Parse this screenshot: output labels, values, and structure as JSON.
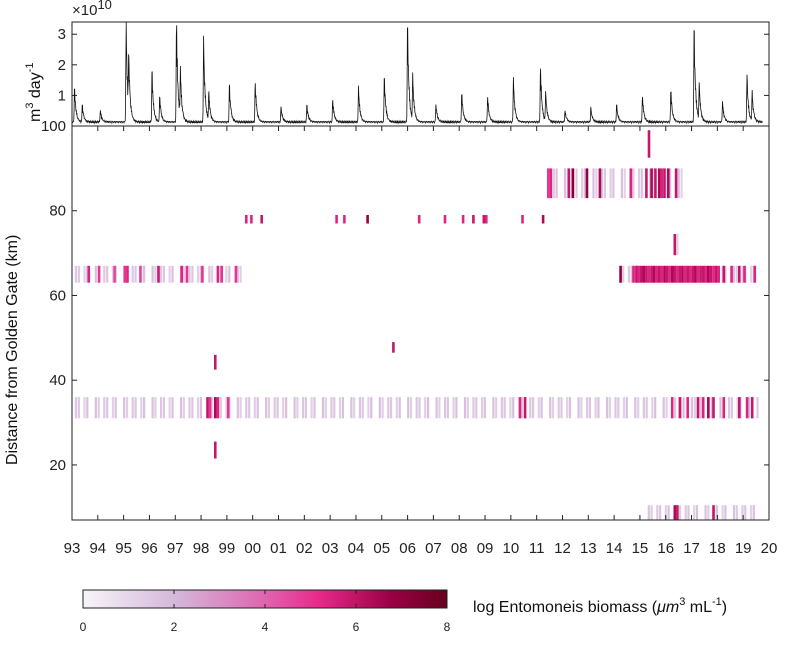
{
  "chart_data": [
    {
      "type": "line",
      "panel": "top",
      "ylabel_base": "m",
      "ylabel_sup1": "3",
      "ylabel_mid": " day",
      "ylabel_sup2": "-1",
      "multiplier_prefix": "×10",
      "multiplier_exp": "10",
      "ylim": [
        0,
        3.4
      ],
      "yticks": [
        1,
        2,
        3
      ],
      "xlim": [
        1993,
        2020
      ],
      "peaks": [
        {
          "x": 1993.1,
          "y": 1.2
        },
        {
          "x": 1993.4,
          "y": 0.6
        },
        {
          "x": 1994.1,
          "y": 0.4
        },
        {
          "x": 1995.1,
          "y": 3.3
        },
        {
          "x": 1995.2,
          "y": 1.8
        },
        {
          "x": 1996.1,
          "y": 1.8
        },
        {
          "x": 1996.4,
          "y": 0.9
        },
        {
          "x": 1997.05,
          "y": 3.4
        },
        {
          "x": 1997.2,
          "y": 1.6
        },
        {
          "x": 1998.1,
          "y": 2.85
        },
        {
          "x": 1998.3,
          "y": 1.0
        },
        {
          "x": 1999.1,
          "y": 1.3
        },
        {
          "x": 2000.1,
          "y": 1.4
        },
        {
          "x": 2001.1,
          "y": 0.5
        },
        {
          "x": 2002.1,
          "y": 0.6
        },
        {
          "x": 2003.1,
          "y": 0.8
        },
        {
          "x": 2004.1,
          "y": 1.2
        },
        {
          "x": 2005.1,
          "y": 1.6
        },
        {
          "x": 2006.0,
          "y": 3.4
        },
        {
          "x": 2006.2,
          "y": 1.5
        },
        {
          "x": 2007.1,
          "y": 0.6
        },
        {
          "x": 2008.1,
          "y": 1.0
        },
        {
          "x": 2009.1,
          "y": 0.9
        },
        {
          "x": 2010.1,
          "y": 1.5
        },
        {
          "x": 2011.15,
          "y": 1.9
        },
        {
          "x": 2011.35,
          "y": 1.0
        },
        {
          "x": 2012.1,
          "y": 0.4
        },
        {
          "x": 2013.1,
          "y": 0.5
        },
        {
          "x": 2014.1,
          "y": 0.6
        },
        {
          "x": 2015.1,
          "y": 0.9
        },
        {
          "x": 2016.2,
          "y": 1.1
        },
        {
          "x": 2017.1,
          "y": 3.3
        },
        {
          "x": 2017.3,
          "y": 1.2
        },
        {
          "x": 2018.2,
          "y": 0.7
        },
        {
          "x": 2019.15,
          "y": 1.6
        },
        {
          "x": 2019.35,
          "y": 1.0
        }
      ]
    },
    {
      "type": "heatmap",
      "panel": "bottom",
      "ylabel": "Distance from Golden Gate  (km)",
      "ylim": [
        7,
        100
      ],
      "yticks": [
        20,
        40,
        60,
        80,
        100
      ],
      "xlim": [
        1993,
        2020
      ],
      "xtick_labels": [
        "93",
        "94",
        "95",
        "96",
        "97",
        "98",
        "99",
        "00",
        "01",
        "02",
        "03",
        "04",
        "05",
        "06",
        "07",
        "08",
        "09",
        "10",
        "11",
        "12",
        "13",
        "14",
        "15",
        "16",
        "17",
        "18",
        "19",
        "20"
      ],
      "bands": [
        {
          "y0": 63,
          "y1": 67,
          "faint_from": 1993.0,
          "faint_to": 1999.6,
          "strips": [
            [
              1993.6,
              5
            ],
            [
              1994.0,
              4.5
            ],
            [
              1994.6,
              4
            ],
            [
              1995.0,
              4.5
            ],
            [
              1995.1,
              5
            ],
            [
              1995.6,
              4
            ],
            [
              1996.3,
              5.5
            ],
            [
              1997.2,
              5
            ],
            [
              1997.4,
              4.5
            ],
            [
              1998.0,
              4.5
            ],
            [
              1998.6,
              5
            ],
            [
              1998.75,
              4.5
            ],
            [
              1999.3,
              4.5
            ]
          ]
        },
        {
          "y0": 63,
          "y1": 67,
          "faint_from": 2014.2,
          "faint_to": 2019.6,
          "strips": [
            [
              2014.2,
              6.5
            ],
            [
              2014.7,
              5
            ],
            [
              2014.8,
              5
            ],
            [
              2014.85,
              5.5
            ],
            [
              2014.9,
              5
            ],
            [
              2015.0,
              5.5
            ],
            [
              2015.1,
              6
            ],
            [
              2015.2,
              5.5
            ],
            [
              2015.3,
              5
            ],
            [
              2015.4,
              5.5
            ],
            [
              2015.5,
              6
            ],
            [
              2015.6,
              5
            ],
            [
              2015.7,
              5.5
            ],
            [
              2015.8,
              5
            ],
            [
              2015.9,
              6
            ],
            [
              2016.0,
              5.5
            ],
            [
              2016.1,
              5
            ],
            [
              2016.2,
              6
            ],
            [
              2016.3,
              5.5
            ],
            [
              2016.4,
              5
            ],
            [
              2016.5,
              5.5
            ],
            [
              2016.6,
              6
            ],
            [
              2016.7,
              5
            ],
            [
              2016.8,
              5.5
            ],
            [
              2016.9,
              5
            ],
            [
              2017.0,
              5.5
            ],
            [
              2017.1,
              6
            ],
            [
              2017.2,
              5
            ],
            [
              2017.3,
              5.5
            ],
            [
              2017.4,
              5.5
            ],
            [
              2017.5,
              5
            ],
            [
              2017.6,
              6
            ],
            [
              2017.7,
              5.5
            ],
            [
              2017.8,
              5
            ],
            [
              2017.9,
              5.5
            ],
            [
              2018.0,
              5
            ],
            [
              2018.2,
              5.5
            ],
            [
              2018.5,
              5
            ],
            [
              2018.8,
              5.5
            ],
            [
              2019.0,
              5
            ],
            [
              2019.4,
              5
            ]
          ]
        },
        {
          "y0": 77,
          "y1": 79,
          "faint_from": null,
          "faint_to": null,
          "strips": [
            [
              1999.7,
              5
            ],
            [
              1999.9,
              5
            ],
            [
              2000.3,
              5.5
            ],
            [
              2003.2,
              5
            ],
            [
              2003.5,
              5
            ],
            [
              2004.4,
              6.5
            ],
            [
              2006.4,
              5
            ],
            [
              2007.4,
              5
            ],
            [
              2008.1,
              5
            ],
            [
              2008.5,
              5.5
            ],
            [
              2008.9,
              5.5
            ],
            [
              2009.0,
              5
            ],
            [
              2010.4,
              5
            ],
            [
              2011.2,
              6
            ]
          ]
        },
        {
          "y0": 83,
          "y1": 90,
          "faint_from": 2011.4,
          "faint_to": 2016.6,
          "strips": [
            [
              2011.4,
              4.5
            ],
            [
              2011.5,
              5
            ],
            [
              2012.2,
              5.5
            ],
            [
              2012.35,
              7
            ],
            [
              2012.9,
              6.5
            ],
            [
              2013.4,
              6
            ],
            [
              2014.6,
              5
            ],
            [
              2015.2,
              5.5
            ],
            [
              2015.4,
              6
            ],
            [
              2015.55,
              5.5
            ],
            [
              2015.7,
              6
            ],
            [
              2015.8,
              5
            ],
            [
              2015.9,
              5.5
            ],
            [
              2016.05,
              6
            ],
            [
              2016.35,
              5.5
            ]
          ]
        },
        {
          "y0": 92.5,
          "y1": 99,
          "faint_from": null,
          "faint_to": null,
          "strips": [
            [
              2015.3,
              5.5
            ]
          ]
        },
        {
          "y0": 69.5,
          "y1": 74.5,
          "faint_from": 2016.3,
          "faint_to": 2016.5,
          "strips": [
            [
              2016.3,
              5.5
            ]
          ]
        },
        {
          "y0": 31,
          "y1": 36,
          "faint_from": 1993.0,
          "faint_to": 2019.6,
          "strips": [
            [
              1998.2,
              5.5
            ],
            [
              1998.3,
              4.5
            ],
            [
              1998.5,
              6
            ],
            [
              1998.6,
              5
            ],
            [
              1999.0,
              4.5
            ],
            [
              2010.3,
              5
            ],
            [
              2010.5,
              5.5
            ],
            [
              2016.2,
              5
            ],
            [
              2016.5,
              5.5
            ],
            [
              2016.8,
              5
            ],
            [
              2017.2,
              5.5
            ],
            [
              2017.4,
              5
            ],
            [
              2017.6,
              6
            ],
            [
              2017.8,
              5.5
            ],
            [
              2018.2,
              5
            ],
            [
              2018.8,
              5.5
            ],
            [
              2019.1,
              5
            ],
            [
              2019.3,
              5.5
            ]
          ]
        },
        {
          "y0": 42.5,
          "y1": 46,
          "faint_from": null,
          "faint_to": null,
          "strips": [
            [
              1998.5,
              5.5
            ]
          ]
        },
        {
          "y0": 21.5,
          "y1": 25.5,
          "faint_from": null,
          "faint_to": null,
          "strips": [
            [
              1998.5,
              5.5
            ]
          ]
        },
        {
          "y0": 46.5,
          "y1": 49,
          "faint_from": null,
          "faint_to": null,
          "strips": [
            [
              2005.4,
              5.5
            ]
          ]
        },
        {
          "y0": 7,
          "y1": 10.5,
          "faint_from": 2015.3,
          "faint_to": 2019.6,
          "strips": [
            [
              2016.3,
              6
            ],
            [
              2016.4,
              5.5
            ],
            [
              2017.8,
              5.5
            ]
          ]
        }
      ]
    }
  ],
  "colorbar": {
    "title_prefix": "log Entomoneis biomass (",
    "title_mu": "μm",
    "title_sup1": "3",
    "title_mid": " mL",
    "title_sup2": "-1",
    "title_suffix": ")",
    "ticks": [
      "0",
      "2",
      "4",
      "6",
      "8"
    ],
    "colors": [
      "#f7f4f9",
      "#d4b9da",
      "#df65b0",
      "#e7298a",
      "#980043",
      "#67001f"
    ]
  }
}
